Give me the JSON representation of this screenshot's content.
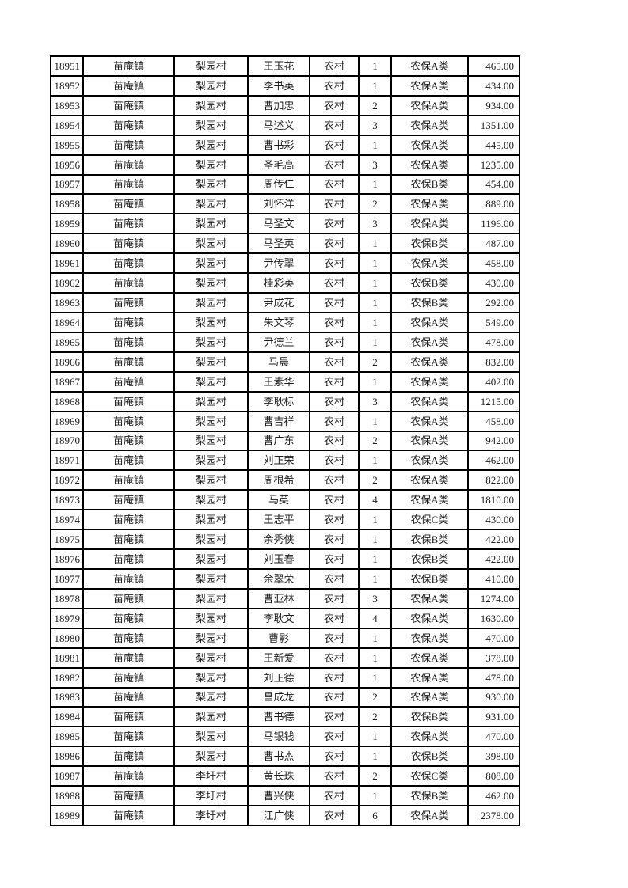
{
  "page": {
    "background": "#ffffff",
    "border_color": "#000000",
    "text_color": "#1c1c1c"
  },
  "table": {
    "row_count": 39,
    "columns_semantic": [
      "id",
      "town",
      "village",
      "person-name",
      "residence-type",
      "person-count",
      "insurance-category",
      "amount"
    ],
    "rows": [
      [
        "18951",
        "苗庵镇",
        "梨园村",
        "王玉花",
        "农村",
        "1",
        "农保A类",
        "465.00"
      ],
      [
        "18952",
        "苗庵镇",
        "梨园村",
        "李书英",
        "农村",
        "1",
        "农保A类",
        "434.00"
      ],
      [
        "18953",
        "苗庵镇",
        "梨园村",
        "曹加忠",
        "农村",
        "2",
        "农保A类",
        "934.00"
      ],
      [
        "18954",
        "苗庵镇",
        "梨园村",
        "马述义",
        "农村",
        "3",
        "农保A类",
        "1351.00"
      ],
      [
        "18955",
        "苗庵镇",
        "梨园村",
        "曹书彩",
        "农村",
        "1",
        "农保A类",
        "445.00"
      ],
      [
        "18956",
        "苗庵镇",
        "梨园村",
        "圣毛高",
        "农村",
        "3",
        "农保A类",
        "1235.00"
      ],
      [
        "18957",
        "苗庵镇",
        "梨园村",
        "周传仁",
        "农村",
        "1",
        "农保B类",
        "454.00"
      ],
      [
        "18958",
        "苗庵镇",
        "梨园村",
        "刘怀洋",
        "农村",
        "2",
        "农保A类",
        "889.00"
      ],
      [
        "18959",
        "苗庵镇",
        "梨园村",
        "马圣文",
        "农村",
        "3",
        "农保A类",
        "1196.00"
      ],
      [
        "18960",
        "苗庵镇",
        "梨园村",
        "马圣英",
        "农村",
        "1",
        "农保B类",
        "487.00"
      ],
      [
        "18961",
        "苗庵镇",
        "梨园村",
        "尹传翠",
        "农村",
        "1",
        "农保A类",
        "458.00"
      ],
      [
        "18962",
        "苗庵镇",
        "梨园村",
        "桂彩英",
        "农村",
        "1",
        "农保B类",
        "430.00"
      ],
      [
        "18963",
        "苗庵镇",
        "梨园村",
        "尹成花",
        "农村",
        "1",
        "农保B类",
        "292.00"
      ],
      [
        "18964",
        "苗庵镇",
        "梨园村",
        "朱文琴",
        "农村",
        "1",
        "农保A类",
        "549.00"
      ],
      [
        "18965",
        "苗庵镇",
        "梨园村",
        "尹德兰",
        "农村",
        "1",
        "农保A类",
        "478.00"
      ],
      [
        "18966",
        "苗庵镇",
        "梨园村",
        "马晨",
        "农村",
        "2",
        "农保A类",
        "832.00"
      ],
      [
        "18967",
        "苗庵镇",
        "梨园村",
        "王素华",
        "农村",
        "1",
        "农保A类",
        "402.00"
      ],
      [
        "18968",
        "苗庵镇",
        "梨园村",
        "李耿标",
        "农村",
        "3",
        "农保A类",
        "1215.00"
      ],
      [
        "18969",
        "苗庵镇",
        "梨园村",
        "曹吉祥",
        "农村",
        "1",
        "农保A类",
        "458.00"
      ],
      [
        "18970",
        "苗庵镇",
        "梨园村",
        "曹广东",
        "农村",
        "2",
        "农保A类",
        "942.00"
      ],
      [
        "18971",
        "苗庵镇",
        "梨园村",
        "刘正荣",
        "农村",
        "1",
        "农保A类",
        "462.00"
      ],
      [
        "18972",
        "苗庵镇",
        "梨园村",
        "周根希",
        "农村",
        "2",
        "农保A类",
        "822.00"
      ],
      [
        "18973",
        "苗庵镇",
        "梨园村",
        "马英",
        "农村",
        "4",
        "农保A类",
        "1810.00"
      ],
      [
        "18974",
        "苗庵镇",
        "梨园村",
        "王志平",
        "农村",
        "1",
        "农保C类",
        "430.00"
      ],
      [
        "18975",
        "苗庵镇",
        "梨园村",
        "余秀侠",
        "农村",
        "1",
        "农保B类",
        "422.00"
      ],
      [
        "18976",
        "苗庵镇",
        "梨园村",
        "刘玉春",
        "农村",
        "1",
        "农保B类",
        "422.00"
      ],
      [
        "18977",
        "苗庵镇",
        "梨园村",
        "余翠荣",
        "农村",
        "1",
        "农保B类",
        "410.00"
      ],
      [
        "18978",
        "苗庵镇",
        "梨园村",
        "曹亚林",
        "农村",
        "3",
        "农保A类",
        "1274.00"
      ],
      [
        "18979",
        "苗庵镇",
        "梨园村",
        "李耿文",
        "农村",
        "4",
        "农保A类",
        "1630.00"
      ],
      [
        "18980",
        "苗庵镇",
        "梨园村",
        "曹影",
        "农村",
        "1",
        "农保A类",
        "470.00"
      ],
      [
        "18981",
        "苗庵镇",
        "梨园村",
        "王新爱",
        "农村",
        "1",
        "农保A类",
        "378.00"
      ],
      [
        "18982",
        "苗庵镇",
        "梨园村",
        "刘正德",
        "农村",
        "1",
        "农保A类",
        "478.00"
      ],
      [
        "18983",
        "苗庵镇",
        "梨园村",
        "昌成龙",
        "农村",
        "2",
        "农保A类",
        "930.00"
      ],
      [
        "18984",
        "苗庵镇",
        "梨园村",
        "曹书德",
        "农村",
        "2",
        "农保B类",
        "931.00"
      ],
      [
        "18985",
        "苗庵镇",
        "梨园村",
        "马银钱",
        "农村",
        "1",
        "农保A类",
        "470.00"
      ],
      [
        "18986",
        "苗庵镇",
        "梨园村",
        "曹书杰",
        "农村",
        "1",
        "农保B类",
        "398.00"
      ],
      [
        "18987",
        "苗庵镇",
        "李圩村",
        "黄长珠",
        "农村",
        "2",
        "农保C类",
        "808.00"
      ],
      [
        "18988",
        "苗庵镇",
        "李圩村",
        "曹兴侠",
        "农村",
        "1",
        "农保B类",
        "462.00"
      ],
      [
        "18989",
        "苗庵镇",
        "李圩村",
        "江广侠",
        "农村",
        "6",
        "农保A类",
        "2378.00"
      ]
    ]
  }
}
